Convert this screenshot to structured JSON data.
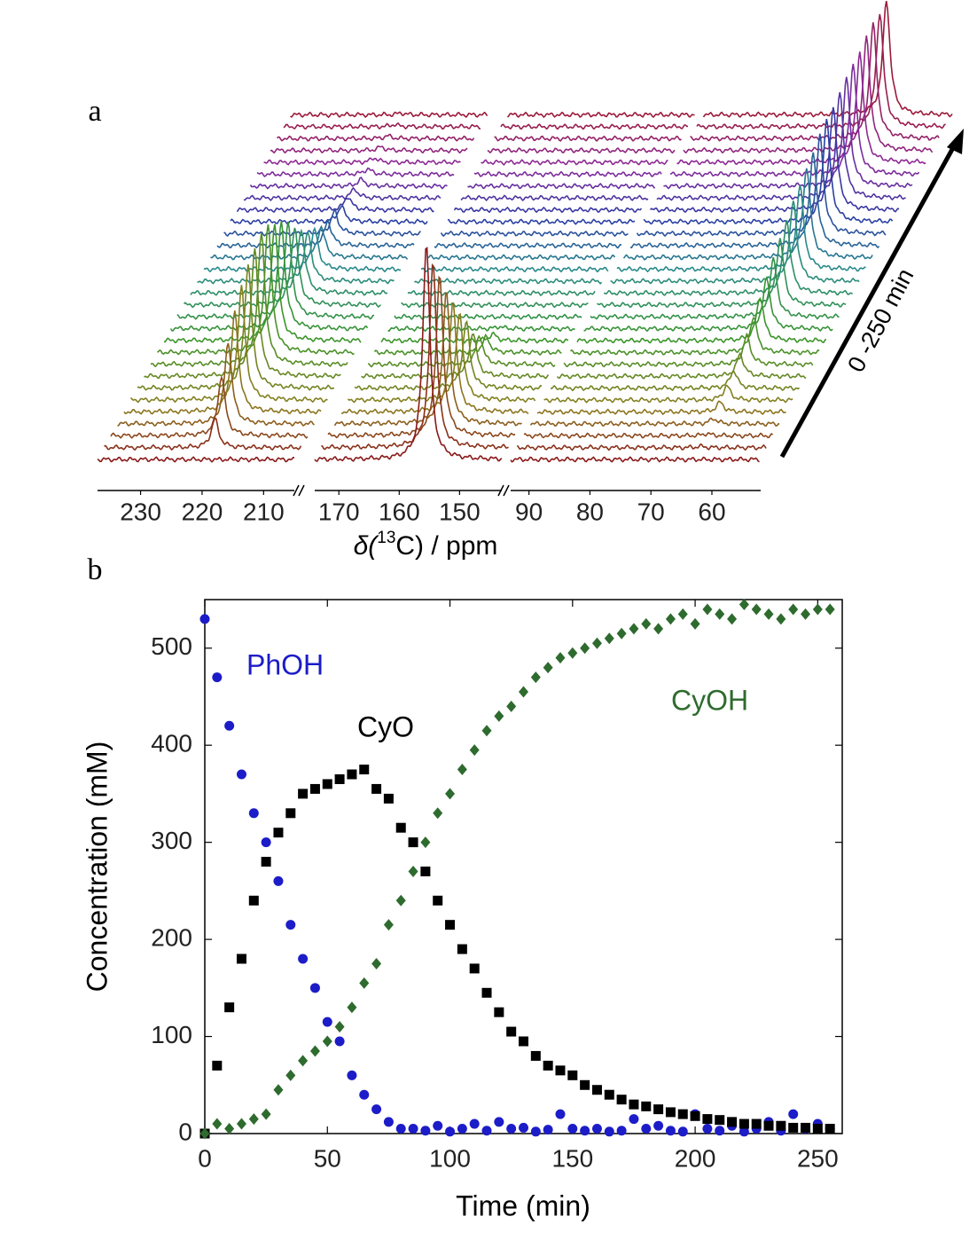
{
  "chart_data": [
    {
      "type": "waterfall",
      "panel_label": "a",
      "xlabel": {
        "prefix": "δ(",
        "sup": "13",
        "suffix": "C) / ppm"
      },
      "time_label": "0 -250 min",
      "segments": [
        [
          237,
          205
        ],
        [
          174,
          143
        ],
        [
          93,
          52
        ]
      ],
      "xticks": [
        230,
        220,
        210,
        170,
        160,
        150,
        90,
        80,
        70,
        60
      ],
      "peaks": [
        {
          "ppm": 219,
          "values": [
            0,
            65,
            135,
            185,
            225,
            255,
            280,
            290,
            295,
            290,
            265,
            240,
            210,
            175,
            145,
            110,
            90,
            70,
            55,
            50,
            35,
            30,
            20,
            15,
            12,
            10,
            8,
            6,
            5,
            4
          ]
        },
        {
          "ppm": 155.5,
          "values": [
            490,
            420,
            360,
            300,
            250,
            195,
            150,
            100,
            65,
            35,
            15,
            5,
            0,
            0,
            0,
            0,
            0,
            0,
            0,
            0,
            0,
            0,
            0,
            0,
            0,
            0,
            0,
            0,
            0,
            0
          ]
        },
        {
          "ppm": 63,
          "values": [
            0,
            3,
            5,
            12,
            22,
            32,
            40,
            50,
            65,
            80,
            100,
            115,
            130,
            150,
            165,
            180,
            190,
            205,
            210,
            220,
            230,
            235,
            240,
            245,
            250,
            250,
            255,
            260,
            258,
            260
          ]
        }
      ]
    },
    {
      "type": "scatter",
      "panel_label": "b",
      "xlabel": "Time (min)",
      "ylabel": "Concentration (mM)",
      "xlim": [
        0,
        260
      ],
      "ylim": [
        0,
        550
      ],
      "xticks": [
        0,
        50,
        100,
        150,
        200,
        250
      ],
      "yticks": [
        0,
        100,
        200,
        300,
        400,
        500
      ],
      "x": [
        0,
        5,
        10,
        15,
        20,
        25,
        30,
        35,
        40,
        45,
        50,
        55,
        60,
        65,
        70,
        75,
        80,
        85,
        90,
        95,
        100,
        105,
        110,
        115,
        120,
        125,
        130,
        135,
        140,
        145,
        150,
        155,
        160,
        165,
        170,
        175,
        180,
        185,
        190,
        195,
        200,
        205,
        210,
        215,
        220,
        225,
        230,
        235,
        240,
        245,
        250,
        255
      ],
      "series": [
        {
          "name": "PhOH",
          "color": "#1c1cc8",
          "marker": "circle",
          "values": [
            530,
            470,
            420,
            370,
            330,
            300,
            260,
            215,
            180,
            150,
            115,
            95,
            60,
            40,
            25,
            12,
            5,
            5,
            3,
            8,
            2,
            5,
            10,
            3,
            12,
            5,
            6,
            2,
            4,
            20,
            5,
            3,
            5,
            2,
            3,
            15,
            5,
            8,
            3,
            2,
            20,
            5,
            3,
            8,
            2,
            5,
            12,
            3,
            20,
            5,
            10,
            5
          ]
        },
        {
          "name": "CyO",
          "color": "#000000",
          "marker": "square",
          "values": [
            0,
            70,
            130,
            180,
            240,
            280,
            310,
            330,
            350,
            355,
            360,
            365,
            370,
            375,
            355,
            345,
            315,
            300,
            270,
            240,
            215,
            190,
            170,
            145,
            125,
            105,
            95,
            80,
            70,
            65,
            60,
            50,
            45,
            40,
            35,
            30,
            28,
            25,
            22,
            20,
            18,
            15,
            14,
            12,
            10,
            10,
            8,
            8,
            6,
            6,
            5,
            5
          ]
        },
        {
          "name": "CyOH",
          "color": "#2e6b2e",
          "marker": "diamond",
          "values": [
            0,
            10,
            5,
            10,
            15,
            20,
            45,
            60,
            75,
            85,
            95,
            110,
            130,
            155,
            175,
            215,
            240,
            270,
            300,
            330,
            350,
            375,
            395,
            415,
            430,
            440,
            455,
            470,
            480,
            490,
            495,
            500,
            505,
            510,
            515,
            520,
            525,
            520,
            530,
            535,
            525,
            540,
            535,
            530,
            545,
            540,
            535,
            530,
            540,
            535,
            540,
            540
          ]
        }
      ]
    }
  ]
}
